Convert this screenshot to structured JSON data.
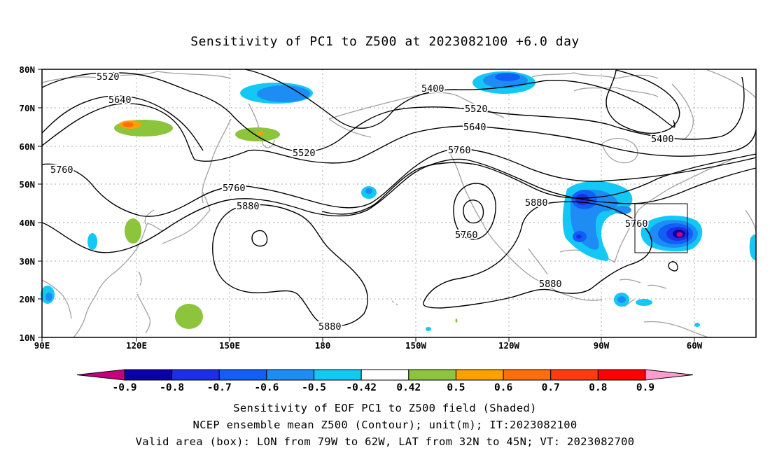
{
  "title": "Sensitivity of PC1 to Z500 at 2023082100 +6.0 day",
  "map": {
    "lon_ticks": [
      "90E",
      "120E",
      "150E",
      "180",
      "150W",
      "120W",
      "90W",
      "60W"
    ],
    "lat_ticks": [
      "80N",
      "70N",
      "60N",
      "50N",
      "40N",
      "30N",
      "20N",
      "10N"
    ],
    "grid": "dotted",
    "contour_labels": [
      "5520",
      "5640",
      "5760",
      "5760",
      "5880",
      "5880",
      "5520",
      "5400",
      "5520",
      "5640",
      "5760",
      "5760",
      "5880",
      "5880",
      "5760",
      "5400"
    ],
    "box": {
      "lon": [
        "79W",
        "62W"
      ],
      "lat": [
        "32N",
        "45N"
      ]
    }
  },
  "colorbar": {
    "labels": [
      "-0.9",
      "-0.8",
      "-0.7",
      "-0.6",
      "-0.5",
      "-0.42",
      "0.42",
      "0.5",
      "0.6",
      "0.7",
      "0.8",
      "0.9"
    ],
    "colors": [
      "#c4007d",
      "#0a00a8",
      "#1d2fe6",
      "#1060f5",
      "#1e8cf5",
      "#14c8f5",
      "#ffffff",
      "#8cc43c",
      "#ffa000",
      "#ff6e0a",
      "#ff3c0a",
      "#ff0000",
      "#ff9ccd"
    ]
  },
  "footer": {
    "line1": "Sensitivity of EOF PC1 to Z500 field (Shaded)",
    "line2": "NCEP ensemble mean Z500 (Contour); unit(m); IT:2023082100",
    "line3": "Valid area (box): LON from 79W to 62W, LAT from 32N to 45N; VT: 2023082700"
  }
}
